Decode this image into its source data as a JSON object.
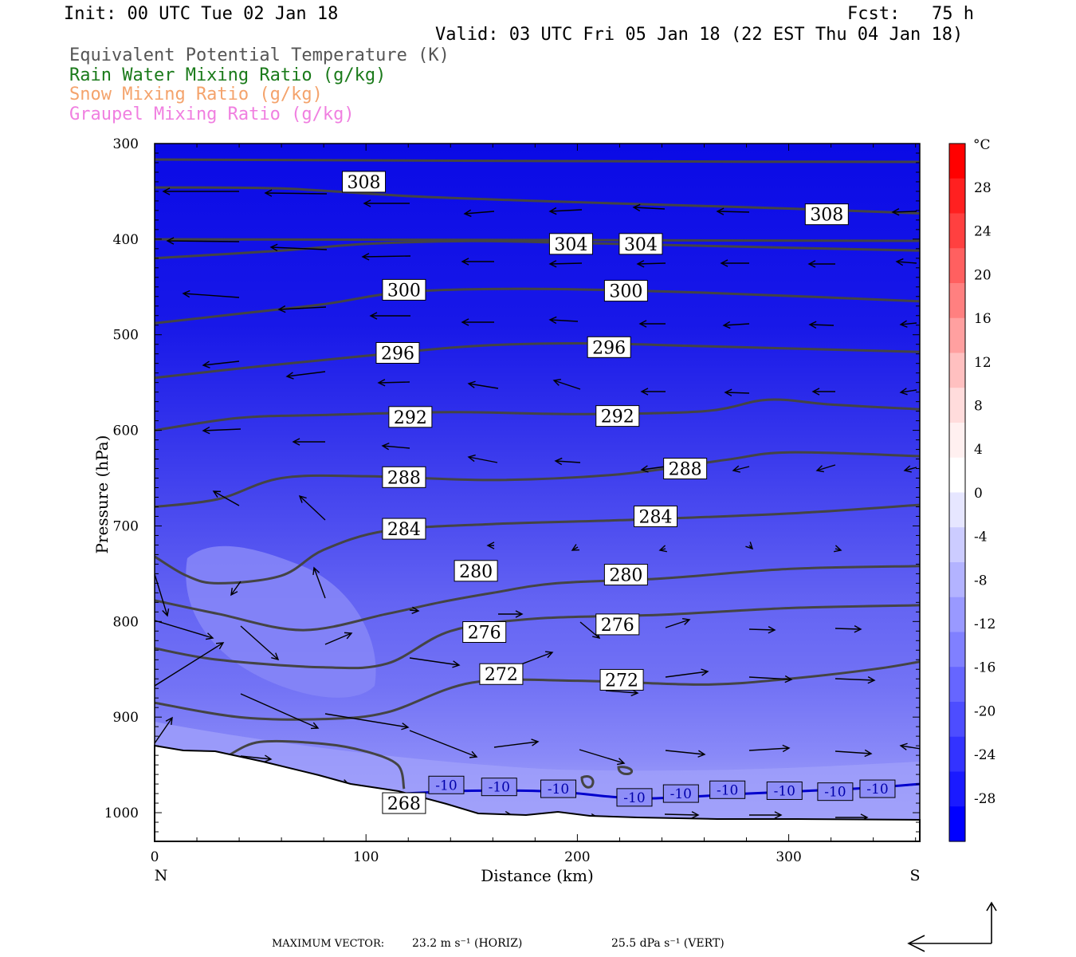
{
  "header": {
    "init": "Init: 00 UTC Tue 02 Jan 18",
    "fcst": "Fcst:   75 h",
    "valid": "Valid: 03 UTC Fri 05 Jan 18 (22 EST Thu 04 Jan 18)",
    "fields": [
      {
        "text": "Equivalent Potential Temperature (K)",
        "color": "#555555"
      },
      {
        "text": "Rain Water Mixing Ratio (g/kg)",
        "color": "#1a7a1a"
      },
      {
        "text": "Snow Mixing Ratio (g/kg)",
        "color": "#f4a36c"
      },
      {
        "text": "Graupel Mixing Ratio (g/kg)",
        "color": "#f07fe0"
      }
    ]
  },
  "chart_data": {
    "type": "contour-cross-section",
    "xlabel": "Distance (km)",
    "ylabel": "Pressure (hPa)",
    "xlim": [
      0,
      362
    ],
    "ylim": [
      1030,
      300
    ],
    "x_ticks": [
      0,
      100,
      200,
      300
    ],
    "y_ticks": [
      300,
      400,
      500,
      600,
      700,
      800,
      900,
      1000
    ],
    "left_end_label": "N",
    "right_end_label": "S",
    "colorbar": {
      "unit": "°C",
      "tick_labels": [
        "28",
        "24",
        "20",
        "16",
        "12",
        "8",
        "4",
        "0",
        "-4",
        "-8",
        "-12",
        "-16",
        "-20",
        "-24",
        "-28"
      ],
      "colors": [
        "#ff0000",
        "#ff2020",
        "#ff4040",
        "#ff6060",
        "#ff8080",
        "#ffa0a0",
        "#ffc0c0",
        "#ffdcdc",
        "#fff0f0",
        "#ffffff",
        "#e6e6ff",
        "#ccccff",
        "#b3b3ff",
        "#9999ff",
        "#8080ff",
        "#6666ff",
        "#4d4dff",
        "#3333ff",
        "#1a1aff",
        "#0000ff"
      ]
    },
    "theta_e_contours": [
      {
        "value": 308,
        "labels": [
          [
            99,
            340
          ],
          [
            318,
            374
          ]
        ],
        "points": [
          [
            0,
            346
          ],
          [
            60,
            347
          ],
          [
            120,
            355
          ],
          [
            180,
            360
          ],
          [
            240,
            364
          ],
          [
            300,
            368
          ],
          [
            362,
            373
          ]
        ]
      },
      {
        "value": 304,
        "labels": [
          [
            197,
            405
          ],
          [
            230,
            405
          ]
        ],
        "points": [
          [
            0,
            420
          ],
          [
            60,
            412
          ],
          [
            100,
            405
          ],
          [
            150,
            402
          ],
          [
            200,
            404
          ],
          [
            260,
            407
          ],
          [
            362,
            412
          ]
        ]
      },
      {
        "value": 300,
        "labels": [
          [
            118,
            453
          ],
          [
            223,
            454
          ]
        ],
        "points": [
          [
            0,
            488
          ],
          [
            40,
            478
          ],
          [
            80,
            468
          ],
          [
            120,
            455
          ],
          [
            180,
            452
          ],
          [
            260,
            456
          ],
          [
            362,
            465
          ]
        ]
      },
      {
        "value": 296,
        "labels": [
          [
            115,
            519
          ],
          [
            215,
            513
          ]
        ],
        "points": [
          [
            0,
            545
          ],
          [
            50,
            533
          ],
          [
            100,
            522
          ],
          [
            150,
            512
          ],
          [
            200,
            509
          ],
          [
            260,
            512
          ],
          [
            362,
            518
          ]
        ]
      },
      {
        "value": 292,
        "labels": [
          [
            121,
            586
          ],
          [
            219,
            585
          ]
        ],
        "points": [
          [
            0,
            600
          ],
          [
            40,
            587
          ],
          [
            80,
            584
          ],
          [
            140,
            581
          ],
          [
            200,
            583
          ],
          [
            260,
            580
          ],
          [
            290,
            568
          ],
          [
            320,
            573
          ],
          [
            362,
            578
          ]
        ]
      },
      {
        "value": 288,
        "labels": [
          [
            118,
            649
          ],
          [
            251,
            640
          ]
        ],
        "points": [
          [
            0,
            680
          ],
          [
            30,
            672
          ],
          [
            60,
            650
          ],
          [
            100,
            648
          ],
          [
            160,
            652
          ],
          [
            220,
            646
          ],
          [
            270,
            631
          ],
          [
            300,
            623
          ],
          [
            362,
            627
          ]
        ]
      },
      {
        "value": 284,
        "labels": [
          [
            118,
            703
          ],
          [
            237,
            690
          ]
        ],
        "points": [
          [
            0,
            732
          ],
          [
            15,
            752
          ],
          [
            30,
            760
          ],
          [
            60,
            752
          ],
          [
            80,
            725
          ],
          [
            110,
            705
          ],
          [
            160,
            698
          ],
          [
            220,
            694
          ],
          [
            300,
            687
          ],
          [
            362,
            678
          ]
        ]
      },
      {
        "value": 280,
        "labels": [
          [
            152,
            747
          ],
          [
            223,
            751
          ]
        ],
        "points": [
          [
            0,
            778
          ],
          [
            30,
            792
          ],
          [
            70,
            809
          ],
          [
            110,
            792
          ],
          [
            135,
            780
          ],
          [
            160,
            770
          ],
          [
            190,
            760
          ],
          [
            240,
            755
          ],
          [
            300,
            745
          ],
          [
            362,
            742
          ]
        ]
      },
      {
        "value": 276,
        "labels": [
          [
            156,
            811
          ],
          [
            219,
            803
          ]
        ],
        "points": [
          [
            0,
            828
          ],
          [
            30,
            840
          ],
          [
            80,
            848
          ],
          [
            110,
            844
          ],
          [
            140,
            810
          ],
          [
            180,
            797
          ],
          [
            240,
            793
          ],
          [
            300,
            786
          ],
          [
            362,
            783
          ]
        ]
      },
      {
        "value": 272,
        "labels": [
          [
            164,
            855
          ],
          [
            221,
            861
          ]
        ],
        "points": [
          [
            0,
            885
          ],
          [
            40,
            900
          ],
          [
            80,
            902
          ],
          [
            110,
            895
          ],
          [
            150,
            864
          ],
          [
            200,
            862
          ],
          [
            260,
            866
          ],
          [
            300,
            860
          ],
          [
            340,
            850
          ],
          [
            362,
            842
          ]
        ]
      },
      {
        "value": 268,
        "labels": [
          [
            118,
            990
          ]
        ],
        "points": [
          [
            35,
            940
          ],
          [
            50,
            926
          ],
          [
            80,
            928
          ],
          [
            100,
            936
          ],
          [
            115,
            950
          ],
          [
            118,
            975
          ]
        ]
      }
    ],
    "temperature_contour": {
      "value": -10,
      "label": "-10",
      "color": "#0000cc",
      "labels": [
        [
          138,
          971
        ],
        [
          163,
          973
        ],
        [
          191,
          975
        ],
        [
          227,
          984
        ],
        [
          249,
          980
        ],
        [
          271,
          976
        ],
        [
          298,
          977
        ],
        [
          322,
          978
        ],
        [
          342,
          975
        ]
      ],
      "points": [
        [
          118,
          980
        ],
        [
          150,
          977
        ],
        [
          190,
          978
        ],
        [
          230,
          985
        ],
        [
          280,
          980
        ],
        [
          330,
          975
        ],
        [
          362,
          970
        ]
      ]
    },
    "footer": {
      "max_vector_label": "MAXIMUM VECTOR:",
      "horiz": "23.2 m s⁻¹ (HORIZ)",
      "vert": "25.5 dPa s⁻¹ (VERT)"
    }
  }
}
